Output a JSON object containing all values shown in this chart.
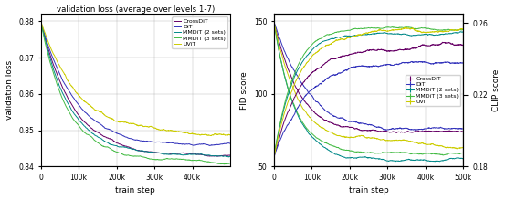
{
  "colors": {
    "CrossDiT": "#660066",
    "DiT": "#3333bb",
    "MMDiT_2": "#008888",
    "MMDiT_3": "#44bb44",
    "UViT": "#cccc00"
  },
  "legend_labels": [
    "CrossDiT",
    "DiT",
    "MMDiT (2 sets)",
    "MMDiT (3 sets)",
    "UViT"
  ],
  "left_title": "validation loss (average over levels 1-7)",
  "left_ylabel": "validation loss",
  "fid_ylabel": "FID score",
  "clip_ylabel": "CLIP score",
  "xlabel": "train step",
  "left_ylim": [
    0.84,
    0.882
  ],
  "left_yticks": [
    0.84,
    0.85,
    0.86,
    0.87,
    0.88
  ],
  "fid_ylim": [
    50,
    155
  ],
  "fid_yticks": [
    50,
    100,
    150
  ],
  "clip_ylim": [
    0.18,
    0.265
  ],
  "clip_yticks": [
    0.18,
    0.22,
    0.26
  ],
  "xlim": [
    0,
    500000
  ],
  "left_xticks": [
    0,
    100000,
    200000,
    300000,
    400000,
    500000
  ],
  "left_xtick_labels": [
    "0",
    "100k",
    "200k",
    "300k",
    "400k",
    "500k"
  ],
  "right_xticks": [
    0,
    100000,
    200000,
    300000,
    400000,
    500000
  ],
  "right_xtick_labels": [
    "0",
    "100k",
    "200k",
    "300k",
    "400k",
    "500k"
  ],
  "n_steps": 2000,
  "line_width": 0.7,
  "noise_scale": 0.0008,
  "fid_noise_scale": 3.0,
  "clip_noise_scale": 0.003
}
